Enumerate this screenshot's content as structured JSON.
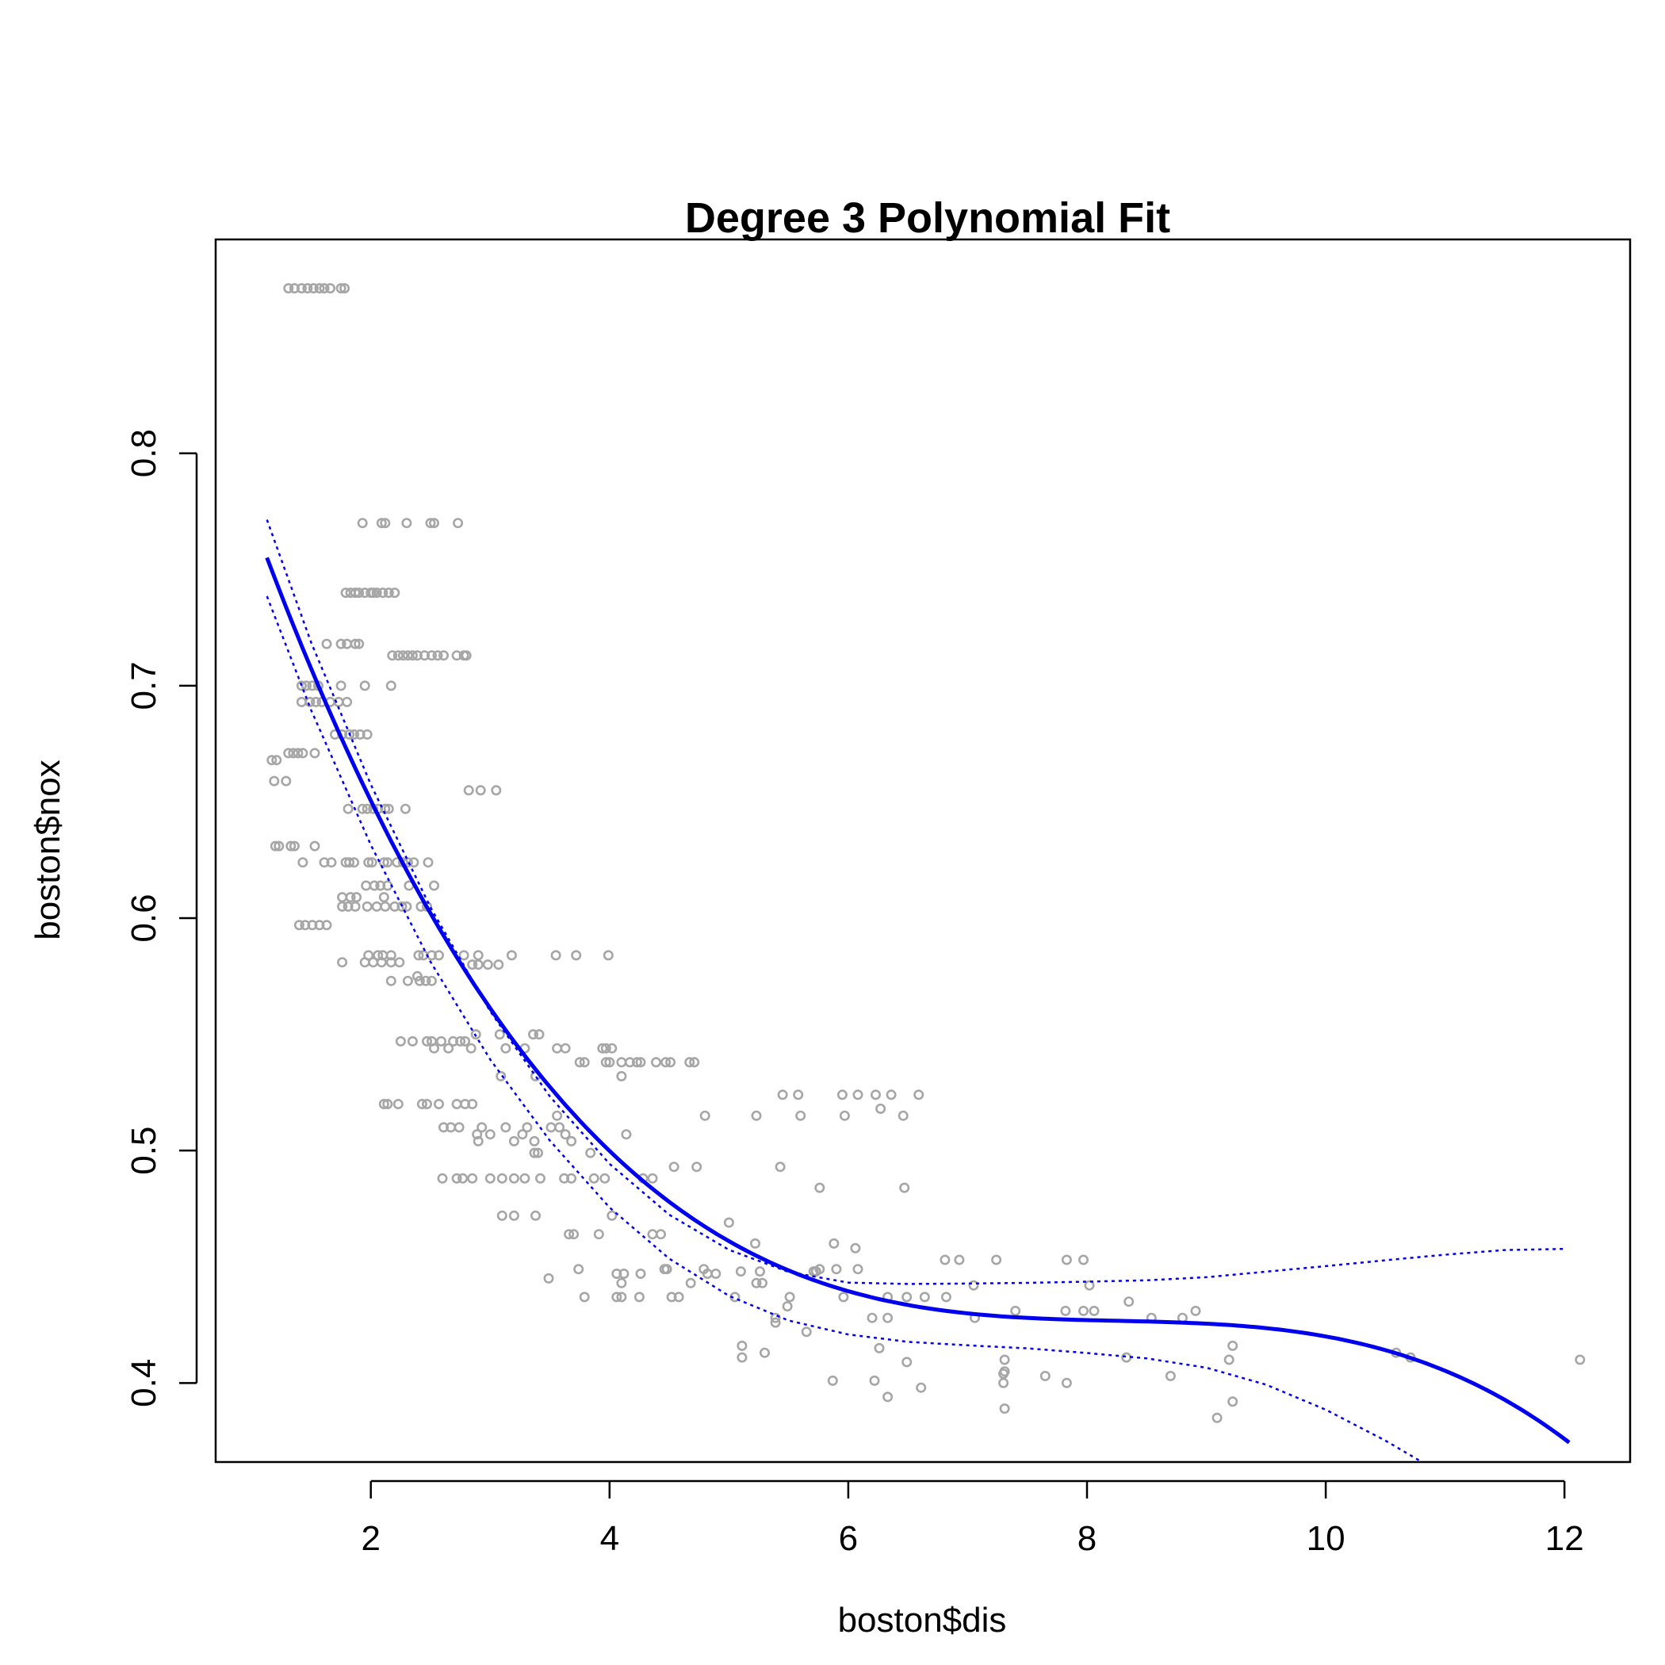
{
  "chart_data": {
    "type": "scatter",
    "title": "Degree 3 Polynomial Fit",
    "xlabel": "boston$dis",
    "ylabel": "boston$nox",
    "xlim": [
      0.7,
      12.55
    ],
    "ylim": [
      0.366,
      0.892
    ],
    "x_ticks": [
      2,
      4,
      6,
      8,
      10,
      12
    ],
    "y_ticks": [
      0.4,
      0.5,
      0.6,
      0.7,
      0.8
    ],
    "colors": {
      "points": "#a6a6a6",
      "fit": "#0000ee",
      "axes": "#000000"
    },
    "points": [
      [
        1.31,
        0.871
      ],
      [
        1.36,
        0.871
      ],
      [
        1.42,
        0.871
      ],
      [
        1.47,
        0.871
      ],
      [
        1.52,
        0.871
      ],
      [
        1.57,
        0.871
      ],
      [
        1.61,
        0.871
      ],
      [
        1.66,
        0.871
      ],
      [
        1.75,
        0.871
      ],
      [
        1.78,
        0.871
      ],
      [
        1.93,
        0.77
      ],
      [
        2.09,
        0.77
      ],
      [
        2.12,
        0.77
      ],
      [
        2.3,
        0.77
      ],
      [
        2.5,
        0.77
      ],
      [
        2.53,
        0.77
      ],
      [
        2.73,
        0.77
      ],
      [
        1.79,
        0.74
      ],
      [
        1.83,
        0.74
      ],
      [
        1.87,
        0.74
      ],
      [
        1.9,
        0.74
      ],
      [
        1.95,
        0.74
      ],
      [
        2.0,
        0.74
      ],
      [
        2.02,
        0.74
      ],
      [
        2.05,
        0.74
      ],
      [
        2.1,
        0.74
      ],
      [
        2.15,
        0.74
      ],
      [
        2.2,
        0.74
      ],
      [
        1.63,
        0.718
      ],
      [
        1.75,
        0.718
      ],
      [
        1.8,
        0.718
      ],
      [
        1.87,
        0.718
      ],
      [
        1.9,
        0.718
      ],
      [
        2.18,
        0.713
      ],
      [
        2.23,
        0.713
      ],
      [
        2.27,
        0.713
      ],
      [
        2.31,
        0.713
      ],
      [
        2.35,
        0.713
      ],
      [
        2.39,
        0.713
      ],
      [
        2.45,
        0.713
      ],
      [
        2.51,
        0.713
      ],
      [
        2.56,
        0.713
      ],
      [
        2.61,
        0.713
      ],
      [
        2.72,
        0.713
      ],
      [
        2.78,
        0.713
      ],
      [
        2.8,
        0.713
      ],
      [
        1.42,
        0.7
      ],
      [
        1.46,
        0.7
      ],
      [
        1.51,
        0.7
      ],
      [
        1.56,
        0.7
      ],
      [
        1.75,
        0.7
      ],
      [
        1.95,
        0.7
      ],
      [
        2.17,
        0.7
      ],
      [
        1.42,
        0.693
      ],
      [
        1.49,
        0.693
      ],
      [
        1.54,
        0.693
      ],
      [
        1.59,
        0.693
      ],
      [
        1.66,
        0.693
      ],
      [
        1.73,
        0.693
      ],
      [
        1.8,
        0.693
      ],
      [
        1.7,
        0.679
      ],
      [
        1.76,
        0.679
      ],
      [
        1.82,
        0.679
      ],
      [
        1.86,
        0.679
      ],
      [
        1.91,
        0.679
      ],
      [
        1.97,
        0.679
      ],
      [
        1.31,
        0.671
      ],
      [
        1.35,
        0.671
      ],
      [
        1.39,
        0.671
      ],
      [
        1.43,
        0.671
      ],
      [
        1.53,
        0.671
      ],
      [
        1.17,
        0.668
      ],
      [
        1.21,
        0.668
      ],
      [
        1.19,
        0.659
      ],
      [
        1.29,
        0.659
      ],
      [
        2.82,
        0.655
      ],
      [
        2.92,
        0.655
      ],
      [
        3.05,
        0.655
      ],
      [
        1.81,
        0.647
      ],
      [
        1.93,
        0.647
      ],
      [
        1.97,
        0.647
      ],
      [
        2.02,
        0.647
      ],
      [
        2.06,
        0.647
      ],
      [
        2.12,
        0.647
      ],
      [
        2.15,
        0.647
      ],
      [
        2.29,
        0.647
      ],
      [
        1.2,
        0.631
      ],
      [
        1.23,
        0.631
      ],
      [
        1.33,
        0.631
      ],
      [
        1.36,
        0.631
      ],
      [
        1.53,
        0.631
      ],
      [
        1.43,
        0.624
      ],
      [
        1.61,
        0.624
      ],
      [
        1.67,
        0.624
      ],
      [
        1.79,
        0.624
      ],
      [
        1.82,
        0.624
      ],
      [
        1.86,
        0.624
      ],
      [
        1.98,
        0.624
      ],
      [
        2.01,
        0.624
      ],
      [
        2.11,
        0.624
      ],
      [
        2.14,
        0.624
      ],
      [
        2.22,
        0.624
      ],
      [
        2.27,
        0.624
      ],
      [
        2.31,
        0.624
      ],
      [
        2.36,
        0.624
      ],
      [
        2.48,
        0.624
      ],
      [
        1.96,
        0.614
      ],
      [
        2.03,
        0.614
      ],
      [
        2.08,
        0.614
      ],
      [
        2.14,
        0.614
      ],
      [
        2.32,
        0.614
      ],
      [
        2.53,
        0.614
      ],
      [
        1.76,
        0.609
      ],
      [
        1.83,
        0.609
      ],
      [
        1.88,
        0.609
      ],
      [
        2.11,
        0.609
      ],
      [
        1.76,
        0.605
      ],
      [
        1.81,
        0.605
      ],
      [
        1.87,
        0.605
      ],
      [
        1.97,
        0.605
      ],
      [
        2.05,
        0.605
      ],
      [
        2.12,
        0.605
      ],
      [
        2.2,
        0.605
      ],
      [
        2.26,
        0.605
      ],
      [
        2.3,
        0.605
      ],
      [
        2.42,
        0.605
      ],
      [
        2.47,
        0.605
      ],
      [
        1.4,
        0.597
      ],
      [
        1.45,
        0.597
      ],
      [
        1.51,
        0.597
      ],
      [
        1.57,
        0.597
      ],
      [
        1.63,
        0.597
      ],
      [
        1.76,
        0.581
      ],
      [
        1.95,
        0.581
      ],
      [
        2.02,
        0.581
      ],
      [
        2.09,
        0.581
      ],
      [
        2.17,
        0.581
      ],
      [
        2.24,
        0.581
      ],
      [
        1.98,
        0.584
      ],
      [
        2.06,
        0.584
      ],
      [
        2.1,
        0.584
      ],
      [
        2.17,
        0.584
      ],
      [
        2.4,
        0.584
      ],
      [
        2.44,
        0.584
      ],
      [
        2.51,
        0.584
      ],
      [
        2.57,
        0.584
      ],
      [
        2.78,
        0.584
      ],
      [
        2.9,
        0.584
      ],
      [
        3.18,
        0.584
      ],
      [
        3.55,
        0.584
      ],
      [
        3.72,
        0.584
      ],
      [
        3.99,
        0.584
      ],
      [
        2.85,
        0.58
      ],
      [
        2.9,
        0.58
      ],
      [
        2.98,
        0.58
      ],
      [
        3.07,
        0.58
      ],
      [
        2.17,
        0.573
      ],
      [
        2.31,
        0.573
      ],
      [
        2.41,
        0.573
      ],
      [
        2.46,
        0.573
      ],
      [
        2.51,
        0.573
      ],
      [
        2.39,
        0.575
      ],
      [
        2.25,
        0.547
      ],
      [
        2.35,
        0.547
      ],
      [
        2.47,
        0.547
      ],
      [
        2.51,
        0.547
      ],
      [
        2.59,
        0.547
      ],
      [
        2.69,
        0.547
      ],
      [
        2.75,
        0.547
      ],
      [
        2.79,
        0.547
      ],
      [
        2.88,
        0.55
      ],
      [
        3.08,
        0.55
      ],
      [
        3.36,
        0.55
      ],
      [
        3.41,
        0.55
      ],
      [
        2.53,
        0.544
      ],
      [
        2.65,
        0.544
      ],
      [
        2.84,
        0.544
      ],
      [
        3.13,
        0.544
      ],
      [
        3.29,
        0.544
      ],
      [
        3.56,
        0.544
      ],
      [
        3.63,
        0.544
      ],
      [
        3.94,
        0.544
      ],
      [
        3.97,
        0.544
      ],
      [
        4.02,
        0.544
      ],
      [
        3.75,
        0.538
      ],
      [
        3.79,
        0.538
      ],
      [
        3.97,
        0.538
      ],
      [
        4.0,
        0.538
      ],
      [
        4.1,
        0.538
      ],
      [
        4.17,
        0.538
      ],
      [
        4.23,
        0.538
      ],
      [
        4.26,
        0.538
      ],
      [
        4.39,
        0.538
      ],
      [
        4.47,
        0.538
      ],
      [
        4.51,
        0.538
      ],
      [
        4.67,
        0.538
      ],
      [
        4.71,
        0.538
      ],
      [
        3.09,
        0.532
      ],
      [
        3.38,
        0.532
      ],
      [
        4.1,
        0.532
      ],
      [
        2.11,
        0.52
      ],
      [
        2.14,
        0.52
      ],
      [
        2.23,
        0.52
      ],
      [
        2.43,
        0.52
      ],
      [
        2.47,
        0.52
      ],
      [
        2.57,
        0.52
      ],
      [
        2.72,
        0.52
      ],
      [
        2.79,
        0.52
      ],
      [
        2.85,
        0.52
      ],
      [
        2.61,
        0.51
      ],
      [
        2.67,
        0.51
      ],
      [
        2.74,
        0.51
      ],
      [
        2.93,
        0.51
      ],
      [
        3.13,
        0.51
      ],
      [
        3.31,
        0.51
      ],
      [
        3.51,
        0.51
      ],
      [
        3.58,
        0.51
      ],
      [
        2.89,
        0.507
      ],
      [
        3.0,
        0.507
      ],
      [
        3.27,
        0.507
      ],
      [
        3.63,
        0.507
      ],
      [
        4.14,
        0.507
      ],
      [
        2.9,
        0.504
      ],
      [
        3.2,
        0.504
      ],
      [
        3.37,
        0.504
      ],
      [
        3.68,
        0.504
      ],
      [
        3.37,
        0.499
      ],
      [
        3.4,
        0.499
      ],
      [
        3.84,
        0.499
      ],
      [
        3.56,
        0.515
      ],
      [
        4.8,
        0.515
      ],
      [
        5.23,
        0.515
      ],
      [
        5.6,
        0.515
      ],
      [
        5.97,
        0.515
      ],
      [
        6.46,
        0.515
      ],
      [
        5.45,
        0.524
      ],
      [
        5.58,
        0.524
      ],
      [
        5.95,
        0.524
      ],
      [
        6.08,
        0.524
      ],
      [
        6.23,
        0.524
      ],
      [
        6.36,
        0.524
      ],
      [
        6.59,
        0.524
      ],
      [
        6.27,
        0.518
      ],
      [
        4.54,
        0.493
      ],
      [
        4.73,
        0.493
      ],
      [
        5.43,
        0.493
      ],
      [
        2.6,
        0.488
      ],
      [
        2.72,
        0.488
      ],
      [
        2.77,
        0.488
      ],
      [
        2.85,
        0.488
      ],
      [
        3.0,
        0.488
      ],
      [
        3.1,
        0.488
      ],
      [
        3.2,
        0.488
      ],
      [
        3.29,
        0.488
      ],
      [
        3.42,
        0.488
      ],
      [
        3.62,
        0.488
      ],
      [
        3.68,
        0.488
      ],
      [
        3.87,
        0.488
      ],
      [
        3.96,
        0.488
      ],
      [
        4.28,
        0.488
      ],
      [
        4.36,
        0.488
      ],
      [
        5.76,
        0.484
      ],
      [
        6.47,
        0.484
      ],
      [
        3.1,
        0.472
      ],
      [
        3.2,
        0.472
      ],
      [
        3.38,
        0.472
      ],
      [
        4.02,
        0.472
      ],
      [
        5.0,
        0.469
      ],
      [
        3.66,
        0.464
      ],
      [
        3.7,
        0.464
      ],
      [
        3.91,
        0.464
      ],
      [
        4.36,
        0.464
      ],
      [
        4.43,
        0.464
      ],
      [
        5.88,
        0.46
      ],
      [
        6.06,
        0.458
      ],
      [
        5.22,
        0.46
      ],
      [
        3.74,
        0.449
      ],
      [
        4.46,
        0.449
      ],
      [
        4.48,
        0.449
      ],
      [
        4.79,
        0.449
      ],
      [
        5.76,
        0.449
      ],
      [
        5.9,
        0.449
      ],
      [
        6.08,
        0.449
      ],
      [
        4.06,
        0.447
      ],
      [
        4.12,
        0.447
      ],
      [
        4.26,
        0.447
      ],
      [
        4.82,
        0.447
      ],
      [
        4.89,
        0.447
      ],
      [
        5.1,
        0.448
      ],
      [
        5.26,
        0.448
      ],
      [
        5.71,
        0.448
      ],
      [
        5.73,
        0.448
      ],
      [
        3.49,
        0.445
      ],
      [
        4.1,
        0.443
      ],
      [
        4.68,
        0.443
      ],
      [
        5.23,
        0.443
      ],
      [
        5.28,
        0.443
      ],
      [
        7.05,
        0.442
      ],
      [
        8.02,
        0.442
      ],
      [
        3.79,
        0.437
      ],
      [
        4.06,
        0.437
      ],
      [
        4.1,
        0.437
      ],
      [
        4.25,
        0.437
      ],
      [
        4.52,
        0.437
      ],
      [
        4.58,
        0.437
      ],
      [
        5.05,
        0.437
      ],
      [
        5.51,
        0.437
      ],
      [
        5.96,
        0.437
      ],
      [
        6.33,
        0.437
      ],
      [
        6.49,
        0.437
      ],
      [
        6.64,
        0.437
      ],
      [
        6.82,
        0.437
      ],
      [
        5.49,
        0.433
      ],
      [
        7.4,
        0.431
      ],
      [
        7.82,
        0.431
      ],
      [
        7.97,
        0.431
      ],
      [
        8.06,
        0.431
      ],
      [
        8.91,
        0.431
      ],
      [
        8.35,
        0.435
      ],
      [
        8.54,
        0.428
      ],
      [
        8.8,
        0.428
      ],
      [
        7.06,
        0.428
      ],
      [
        6.2,
        0.428
      ],
      [
        6.33,
        0.428
      ],
      [
        5.39,
        0.426
      ],
      [
        5.39,
        0.428
      ],
      [
        5.65,
        0.422
      ],
      [
        5.11,
        0.416
      ],
      [
        6.26,
        0.415
      ],
      [
        9.22,
        0.416
      ],
      [
        5.11,
        0.411
      ],
      [
        5.3,
        0.413
      ],
      [
        8.33,
        0.411
      ],
      [
        10.59,
        0.413
      ],
      [
        10.71,
        0.411
      ],
      [
        12.13,
        0.41
      ],
      [
        9.19,
        0.41
      ],
      [
        6.49,
        0.409
      ],
      [
        7.31,
        0.41
      ],
      [
        7.31,
        0.405
      ],
      [
        7.3,
        0.404
      ],
      [
        7.65,
        0.403
      ],
      [
        8.7,
        0.403
      ],
      [
        5.87,
        0.401
      ],
      [
        6.22,
        0.401
      ],
      [
        7.3,
        0.4
      ],
      [
        7.83,
        0.4
      ],
      [
        6.61,
        0.398
      ],
      [
        6.33,
        0.394
      ],
      [
        9.22,
        0.392
      ],
      [
        7.31,
        0.389
      ],
      [
        9.09,
        0.385
      ],
      [
        7.24,
        0.453
      ],
      [
        6.81,
        0.453
      ],
      [
        6.93,
        0.453
      ],
      [
        7.83,
        0.453
      ],
      [
        7.97,
        0.453
      ]
    ],
    "fit_coefficients": [
      0.9341281,
      -0.1820817,
      0.02191786,
      -0.000885065
    ],
    "fit_range": [
      1.13,
      12.04
    ],
    "se_upper": {
      "x": [
        1.13,
        1.5,
        2.0,
        2.5,
        3.0,
        3.5,
        4.0,
        4.5,
        5.0,
        5.5,
        6.0,
        6.5,
        7.0,
        7.5,
        8.0,
        8.5,
        9.0,
        9.5,
        10.0,
        10.5,
        11.0,
        11.5,
        12.0
      ],
      "y": [
        0.7714,
        0.7186,
        0.6575,
        0.6046,
        0.5599,
        0.5233,
        0.4943,
        0.4724,
        0.4573,
        0.4478,
        0.4432,
        0.4426,
        0.4428,
        0.4431,
        0.4436,
        0.4442,
        0.4455,
        0.4479,
        0.4503,
        0.4528,
        0.4552,
        0.4572,
        0.4577
      ]
    },
    "se_lower": {
      "x": [
        1.13,
        1.5,
        2.0,
        2.5,
        3.0,
        3.5,
        4.0,
        4.5,
        5.0,
        5.5,
        6.0,
        6.5,
        7.0,
        7.5,
        8.0,
        8.5,
        9.0,
        9.5,
        10.0,
        10.5,
        10.8
      ],
      "y": [
        0.7385,
        0.6895,
        0.6315,
        0.5812,
        0.5392,
        0.5043,
        0.4755,
        0.4535,
        0.4375,
        0.4269,
        0.4209,
        0.4177,
        0.4162,
        0.4149,
        0.4129,
        0.4106,
        0.4066,
        0.3993,
        0.3885,
        0.3752,
        0.3662
      ]
    }
  }
}
